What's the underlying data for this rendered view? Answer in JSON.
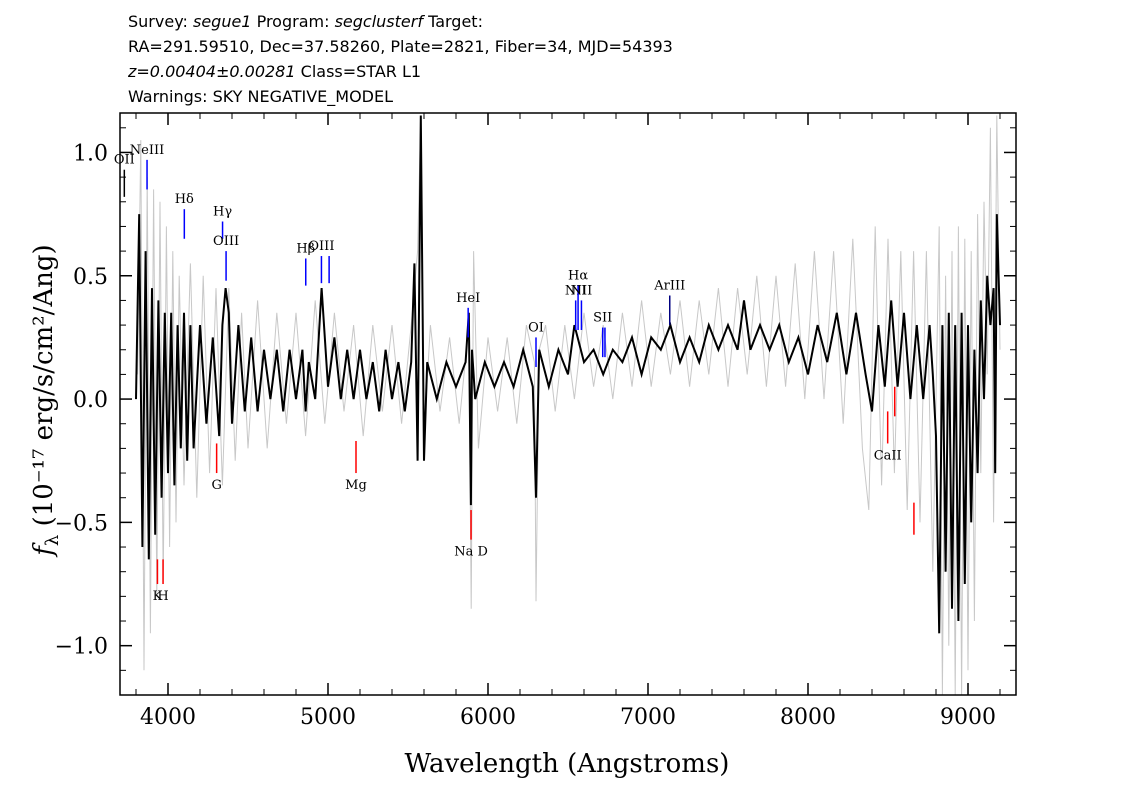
{
  "header": {
    "survey_label": "Survey:",
    "survey_value": "segue1",
    "program_label": "Program:",
    "program_value": "segclusterf",
    "target_label": "Target:",
    "line2": "RA=291.59510, Dec=37.58260, Plate=2821, Fiber=34, MJD=54393",
    "z_value": "z=0.00404±0.00281",
    "class_text": "Class=STAR L1",
    "warnings": "Warnings: SKY NEGATIVE_MODEL"
  },
  "chart_data": {
    "type": "line",
    "title": "",
    "xlabel": "Wavelength (Angstroms)",
    "ylabel_main": "f",
    "ylabel_sub": "λ",
    "ylabel_units": " (10⁻¹⁷ erg/s/cm²/Ang)",
    "xlim": [
      3700,
      9300
    ],
    "ylim": [
      -1.2,
      1.16
    ],
    "x_ticks": [
      4000,
      5000,
      6000,
      7000,
      8000,
      9000
    ],
    "x_tick_labels": [
      "4000",
      "5000",
      "6000",
      "7000",
      "8000",
      "9000"
    ],
    "y_ticks": [
      -1.0,
      -0.5,
      0.0,
      0.5,
      1.0
    ],
    "y_tick_labels": [
      "−1.0",
      "−0.5",
      "0.0",
      "0.5",
      "1.0"
    ],
    "grid": false,
    "series": [
      {
        "color": "#c8c8c8",
        "x": [
          3810,
          3830,
          3850,
          3870,
          3890,
          3910,
          3930,
          3950,
          3970,
          3990,
          4010,
          4030,
          4050,
          4070,
          4100,
          4140,
          4180,
          4220,
          4260,
          4300,
          4340,
          4380,
          4420,
          4460,
          4500,
          4560,
          4620,
          4680,
          4740,
          4800,
          4860,
          4920,
          4980,
          5040,
          5100,
          5160,
          5220,
          5280,
          5340,
          5400,
          5460,
          5520,
          5560,
          5580,
          5600,
          5640,
          5700,
          5760,
          5820,
          5880,
          5895,
          5910,
          5940,
          6000,
          6060,
          6120,
          6180,
          6240,
          6290,
          6300,
          6320,
          6360,
          6420,
          6480,
          6540,
          6600,
          6660,
          6720,
          6780,
          6840,
          6900,
          6960,
          7020,
          7080,
          7140,
          7200,
          7260,
          7320,
          7380,
          7440,
          7500,
          7560,
          7620,
          7680,
          7740,
          7800,
          7860,
          7920,
          7980,
          8040,
          8100,
          8160,
          8220,
          8280,
          8340,
          8380,
          8420,
          8460,
          8500,
          8540,
          8580,
          8620,
          8660,
          8700,
          8740,
          8780,
          8820,
          8840,
          8860,
          8880,
          8900,
          8920,
          8940,
          8960,
          8980,
          9000,
          9020,
          9040,
          9060,
          9080,
          9100,
          9120,
          9140,
          9160,
          9180,
          9200
        ],
        "y": [
          0.1,
          1.05,
          -1.1,
          0.9,
          -0.95,
          0.85,
          -0.8,
          0.8,
          -0.75,
          0.7,
          -0.6,
          0.6,
          -0.5,
          0.5,
          -0.35,
          0.55,
          -0.4,
          0.5,
          -0.3,
          0.45,
          -0.35,
          0.45,
          -0.25,
          0.35,
          -0.2,
          0.4,
          -0.2,
          0.35,
          -0.1,
          0.35,
          -0.15,
          0.4,
          -0.1,
          0.35,
          -0.05,
          0.3,
          -0.15,
          0.3,
          -0.05,
          0.3,
          -0.1,
          0.3,
          0.6,
          1.15,
          -0.15,
          0.3,
          -0.05,
          0.25,
          -0.1,
          0.3,
          -0.85,
          0.6,
          -0.2,
          0.25,
          -0.05,
          0.25,
          -0.1,
          0.3,
          0.15,
          -0.82,
          0.2,
          0.3,
          -0.05,
          0.3,
          0.0,
          0.35,
          0.05,
          0.3,
          0.0,
          0.35,
          0.05,
          0.4,
          0.05,
          0.35,
          0.1,
          0.4,
          0.05,
          0.4,
          0.1,
          0.45,
          0.05,
          0.45,
          0.1,
          0.5,
          0.05,
          0.5,
          0.05,
          0.55,
          0.0,
          0.6,
          0.0,
          0.6,
          -0.1,
          0.65,
          -0.2,
          -0.45,
          0.7,
          -0.35,
          0.65,
          -0.3,
          0.6,
          -0.45,
          0.6,
          -0.5,
          0.6,
          -0.7,
          0.7,
          -1.2,
          0.5,
          -1.0,
          0.6,
          -1.2,
          0.7,
          -1.2,
          0.65,
          -1.1,
          0.6,
          -0.9,
          0.75,
          -0.3,
          0.8,
          0.1,
          1.1,
          -0.5,
          1.15,
          0.2
        ]
      },
      {
        "color": "#000000",
        "x": [
          3800,
          3820,
          3840,
          3860,
          3880,
          3900,
          3920,
          3940,
          3960,
          3980,
          4000,
          4020,
          4040,
          4060,
          4080,
          4100,
          4120,
          4140,
          4160,
          4200,
          4240,
          4280,
          4320,
          4340,
          4360,
          4380,
          4400,
          4440,
          4480,
          4520,
          4560,
          4600,
          4640,
          4680,
          4720,
          4760,
          4800,
          4840,
          4860,
          4880,
          4920,
          4960,
          5000,
          5040,
          5080,
          5120,
          5160,
          5200,
          5240,
          5280,
          5320,
          5360,
          5400,
          5440,
          5480,
          5520,
          5540,
          5560,
          5580,
          5600,
          5620,
          5680,
          5740,
          5800,
          5860,
          5880,
          5893,
          5900,
          5920,
          5980,
          6040,
          6100,
          6160,
          6220,
          6280,
          6300,
          6320,
          6380,
          6440,
          6500,
          6540,
          6560,
          6600,
          6660,
          6720,
          6780,
          6840,
          6900,
          6960,
          7020,
          7080,
          7140,
          7200,
          7260,
          7320,
          7380,
          7440,
          7500,
          7560,
          7600,
          7640,
          7700,
          7760,
          7820,
          7880,
          7940,
          8000,
          8060,
          8120,
          8180,
          8240,
          8300,
          8360,
          8400,
          8440,
          8480,
          8520,
          8560,
          8600,
          8640,
          8680,
          8720,
          8760,
          8780,
          8800,
          8820,
          8840,
          8860,
          8880,
          8900,
          8920,
          8940,
          8960,
          8980,
          9000,
          9020,
          9040,
          9060,
          9080,
          9100,
          9120,
          9140,
          9160,
          9170,
          9180,
          9200
        ],
        "y": [
          0.0,
          0.75,
          -0.6,
          0.6,
          -0.65,
          0.45,
          -0.55,
          0.4,
          -0.4,
          0.35,
          -0.3,
          0.35,
          -0.35,
          0.3,
          -0.2,
          0.35,
          -0.25,
          0.3,
          -0.2,
          0.3,
          -0.1,
          0.25,
          -0.15,
          0.3,
          0.45,
          0.35,
          -0.1,
          0.3,
          -0.05,
          0.25,
          -0.05,
          0.2,
          0.0,
          0.2,
          -0.05,
          0.2,
          0.0,
          0.2,
          -0.05,
          0.15,
          0.0,
          0.45,
          0.05,
          0.25,
          0.0,
          0.2,
          0.0,
          0.2,
          0.0,
          0.15,
          -0.05,
          0.2,
          0.0,
          0.15,
          -0.05,
          0.15,
          0.55,
          -0.25,
          1.15,
          -0.25,
          0.15,
          0.0,
          0.15,
          0.05,
          0.15,
          0.35,
          -0.43,
          0.2,
          0.0,
          0.15,
          0.05,
          0.15,
          0.05,
          0.2,
          0.05,
          -0.4,
          0.2,
          0.05,
          0.2,
          0.1,
          0.3,
          0.25,
          0.15,
          0.2,
          0.1,
          0.2,
          0.15,
          0.25,
          0.1,
          0.25,
          0.2,
          0.3,
          0.15,
          0.25,
          0.15,
          0.3,
          0.2,
          0.3,
          0.2,
          0.4,
          0.2,
          0.3,
          0.2,
          0.3,
          0.15,
          0.25,
          0.1,
          0.3,
          0.15,
          0.35,
          0.1,
          0.35,
          0.1,
          -0.05,
          0.3,
          0.05,
          0.4,
          0.05,
          0.35,
          0.0,
          0.3,
          0.0,
          0.3,
          0.1,
          -0.15,
          -0.95,
          0.3,
          -0.7,
          0.35,
          -0.85,
          0.3,
          -0.9,
          0.35,
          -0.75,
          0.3,
          -0.5,
          0.2,
          -0.3,
          0.4,
          0.0,
          0.5,
          0.3,
          0.45,
          -0.3,
          0.75,
          0.3
        ]
      }
    ],
    "line_markers": [
      {
        "label": "OII",
        "x": 3727,
        "y1": 0.82,
        "y2": 0.93,
        "color": "#000000"
      },
      {
        "label": "NeIII",
        "x": 3869,
        "y1": 0.85,
        "y2": 0.97,
        "color": "#0000ff"
      },
      {
        "label": "Hδ",
        "x": 4102,
        "y1": 0.65,
        "y2": 0.77,
        "color": "#0000ff"
      },
      {
        "label": "Hγ",
        "x": 4341,
        "y1": 0.65,
        "y2": 0.72,
        "color": "#0000ff"
      },
      {
        "label": "OIII",
        "x": 4363,
        "y1": 0.48,
        "y2": 0.6,
        "color": "#0000ff"
      },
      {
        "label": "Hβ",
        "x": 4861,
        "y1": 0.46,
        "y2": 0.57,
        "color": "#0000ff"
      },
      {
        "label": "OIII",
        "x": 4959,
        "y1": 0.47,
        "y2": 0.58,
        "color": "#0000ff"
      },
      {
        "label": "",
        "x": 5007,
        "y1": 0.47,
        "y2": 0.58,
        "color": "#0000ff"
      },
      {
        "label": "HeI",
        "x": 5876,
        "y1": 0.25,
        "y2": 0.37,
        "color": "#0000ff"
      },
      {
        "label": "OI",
        "x": 6300,
        "y1": 0.13,
        "y2": 0.25,
        "color": "#0000ff"
      },
      {
        "label": "NII",
        "x": 6548,
        "y1": 0.28,
        "y2": 0.4,
        "color": "#0000ff"
      },
      {
        "label": "Hα",
        "x": 6563,
        "y1": 0.28,
        "y2": 0.46,
        "color": "#0000ff"
      },
      {
        "label": "NII",
        "x": 6584,
        "y1": 0.28,
        "y2": 0.4,
        "color": "#0000ff"
      },
      {
        "label": "SII",
        "x": 6717,
        "y1": 0.17,
        "y2": 0.29,
        "color": "#0000ff"
      },
      {
        "label": "",
        "x": 6731,
        "y1": 0.17,
        "y2": 0.29,
        "color": "#0000ff"
      },
      {
        "label": "ArIII",
        "x": 7136,
        "y1": 0.3,
        "y2": 0.42,
        "color": "#000080"
      },
      {
        "label": "K",
        "x": 3934,
        "y1": -0.75,
        "y2": -0.65,
        "color": "#ff0000"
      },
      {
        "label": "H",
        "x": 3969,
        "y1": -0.75,
        "y2": -0.65,
        "color": "#ff0000"
      },
      {
        "label": "G",
        "x": 4304,
        "y1": -0.3,
        "y2": -0.18,
        "color": "#ff0000"
      },
      {
        "label": "Mg",
        "x": 5175,
        "y1": -0.3,
        "y2": -0.17,
        "color": "#ff0000"
      },
      {
        "label": "Na D",
        "x": 5894,
        "y1": -0.57,
        "y2": -0.45,
        "color": "#ff0000"
      },
      {
        "label": "CaII",
        "x": 8498,
        "y1": -0.18,
        "y2": -0.05,
        "color": "#ff0000"
      },
      {
        "label": "",
        "x": 8542,
        "y1": -0.07,
        "y2": 0.05,
        "color": "#ff0000"
      },
      {
        "label": "",
        "x": 8662,
        "y1": -0.55,
        "y2": -0.42,
        "color": "#ff0000"
      }
    ]
  }
}
